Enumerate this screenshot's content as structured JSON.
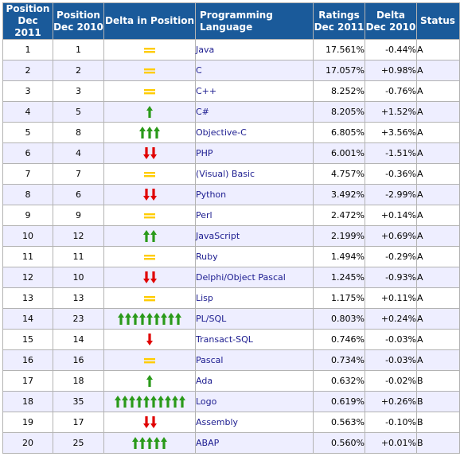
{
  "headers": {
    "pos2011": [
      "Position",
      "Dec 2011"
    ],
    "pos2010": [
      "Position",
      "Dec 2010"
    ],
    "delta_pos": "Delta in Position",
    "language": "Programming Language",
    "ratings": [
      "Ratings",
      "Dec 2011"
    ],
    "delta": [
      "Delta",
      "Dec 2010"
    ],
    "status": "Status"
  },
  "colors": {
    "header_bg": "#1a5a9a",
    "up_arrow": "#2a9a1a",
    "down_arrow": "#e00000",
    "equal": "#ffcc00",
    "link": "#1b1b8f",
    "row_alt": "#eeeeff"
  },
  "rows": [
    {
      "pos2011": "1",
      "pos2010": "1",
      "move": "equal",
      "moveCount": 0,
      "language": "Java",
      "rating": "17.561%",
      "delta": "-0.44%",
      "status": "A"
    },
    {
      "pos2011": "2",
      "pos2010": "2",
      "move": "equal",
      "moveCount": 0,
      "language": "C",
      "rating": "17.057%",
      "delta": "+0.98%",
      "status": "A"
    },
    {
      "pos2011": "3",
      "pos2010": "3",
      "move": "equal",
      "moveCount": 0,
      "language": "C++",
      "rating": "8.252%",
      "delta": "-0.76%",
      "status": "A"
    },
    {
      "pos2011": "4",
      "pos2010": "5",
      "move": "up",
      "moveCount": 1,
      "language": "C#",
      "rating": "8.205%",
      "delta": "+1.52%",
      "status": "A"
    },
    {
      "pos2011": "5",
      "pos2010": "8",
      "move": "up",
      "moveCount": 3,
      "language": "Objective-C",
      "rating": "6.805%",
      "delta": "+3.56%",
      "status": "A"
    },
    {
      "pos2011": "6",
      "pos2010": "4",
      "move": "down",
      "moveCount": 2,
      "language": "PHP",
      "rating": "6.001%",
      "delta": "-1.51%",
      "status": "A"
    },
    {
      "pos2011": "7",
      "pos2010": "7",
      "move": "equal",
      "moveCount": 0,
      "language": "(Visual) Basic",
      "rating": "4.757%",
      "delta": "-0.36%",
      "status": "A"
    },
    {
      "pos2011": "8",
      "pos2010": "6",
      "move": "down",
      "moveCount": 2,
      "language": "Python",
      "rating": "3.492%",
      "delta": "-2.99%",
      "status": "A"
    },
    {
      "pos2011": "9",
      "pos2010": "9",
      "move": "equal",
      "moveCount": 0,
      "language": "Perl",
      "rating": "2.472%",
      "delta": "+0.14%",
      "status": "A"
    },
    {
      "pos2011": "10",
      "pos2010": "12",
      "move": "up",
      "moveCount": 2,
      "language": "JavaScript",
      "rating": "2.199%",
      "delta": "+0.69%",
      "status": "A"
    },
    {
      "pos2011": "11",
      "pos2010": "11",
      "move": "equal",
      "moveCount": 0,
      "language": "Ruby",
      "rating": "1.494%",
      "delta": "-0.29%",
      "status": "A"
    },
    {
      "pos2011": "12",
      "pos2010": "10",
      "move": "down",
      "moveCount": 2,
      "language": "Delphi/Object Pascal",
      "rating": "1.245%",
      "delta": "-0.93%",
      "status": "A"
    },
    {
      "pos2011": "13",
      "pos2010": "13",
      "move": "equal",
      "moveCount": 0,
      "language": "Lisp",
      "rating": "1.175%",
      "delta": "+0.11%",
      "status": "A"
    },
    {
      "pos2011": "14",
      "pos2010": "23",
      "move": "up",
      "moveCount": 9,
      "language": "PL/SQL",
      "rating": "0.803%",
      "delta": "+0.24%",
      "status": "A"
    },
    {
      "pos2011": "15",
      "pos2010": "14",
      "move": "down",
      "moveCount": 1,
      "language": "Transact-SQL",
      "rating": "0.746%",
      "delta": "-0.03%",
      "status": "A"
    },
    {
      "pos2011": "16",
      "pos2010": "16",
      "move": "equal",
      "moveCount": 0,
      "language": "Pascal",
      "rating": "0.734%",
      "delta": "-0.03%",
      "status": "A"
    },
    {
      "pos2011": "17",
      "pos2010": "18",
      "move": "up",
      "moveCount": 1,
      "language": "Ada",
      "rating": "0.632%",
      "delta": "-0.02%",
      "status": "B"
    },
    {
      "pos2011": "18",
      "pos2010": "35",
      "move": "up",
      "moveCount": 10,
      "language": "Logo",
      "rating": "0.619%",
      "delta": "+0.26%",
      "status": "B"
    },
    {
      "pos2011": "19",
      "pos2010": "17",
      "move": "down",
      "moveCount": 2,
      "language": "Assembly",
      "rating": "0.563%",
      "delta": "-0.10%",
      "status": "B"
    },
    {
      "pos2011": "20",
      "pos2010": "25",
      "move": "up",
      "moveCount": 5,
      "language": "ABAP",
      "rating": "0.560%",
      "delta": "+0.01%",
      "status": "B"
    }
  ]
}
